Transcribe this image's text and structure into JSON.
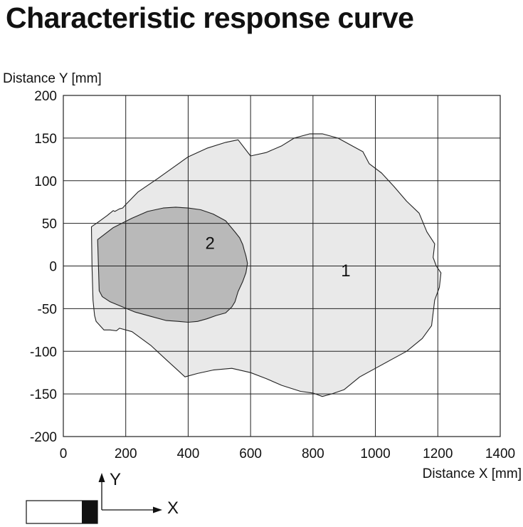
{
  "chart_data": {
    "type": "area",
    "title": "Characteristic response curve",
    "xlabel": "Distance X [mm]",
    "ylabel": "Distance Y [mm]",
    "xlim": [
      0,
      1400
    ],
    "ylim": [
      -200,
      200
    ],
    "xticks": [
      "0",
      "200",
      "400",
      "600",
      "800",
      "1000",
      "1200",
      "1400"
    ],
    "yticks": [
      "200",
      "150",
      "100",
      "50",
      "0",
      "-50",
      "-100",
      "-150",
      "-200"
    ],
    "grid": true,
    "colors": {
      "region_1": "#e9e9e9",
      "region_2": "#b9b9b9",
      "band": "#d4d4d4",
      "outline": "#222222",
      "grid": "#222222"
    },
    "series": [
      {
        "name": "1",
        "points": [
          [
            90,
            46
          ],
          [
            110,
            51
          ],
          [
            140,
            59
          ],
          [
            160,
            65
          ],
          [
            165,
            64
          ],
          [
            180,
            67
          ],
          [
            190,
            68
          ],
          [
            200,
            72
          ],
          [
            240,
            87
          ],
          [
            300,
            102
          ],
          [
            350,
            115
          ],
          [
            400,
            128
          ],
          [
            460,
            138
          ],
          [
            520,
            145
          ],
          [
            560,
            148
          ],
          [
            600,
            129
          ],
          [
            650,
            133
          ],
          [
            700,
            141
          ],
          [
            740,
            150
          ],
          [
            790,
            155
          ],
          [
            830,
            155
          ],
          [
            880,
            150
          ],
          [
            920,
            142
          ],
          [
            960,
            134
          ],
          [
            980,
            120
          ],
          [
            1020,
            109
          ],
          [
            1060,
            93
          ],
          [
            1100,
            76
          ],
          [
            1140,
            62
          ],
          [
            1165,
            40
          ],
          [
            1190,
            26
          ],
          [
            1185,
            10
          ],
          [
            1195,
            0
          ],
          [
            1210,
            -8
          ],
          [
            1205,
            -25
          ],
          [
            1190,
            -40
          ],
          [
            1185,
            -55
          ],
          [
            1180,
            -70
          ],
          [
            1150,
            -85
          ],
          [
            1100,
            -100
          ],
          [
            1050,
            -110
          ],
          [
            1000,
            -120
          ],
          [
            950,
            -130
          ],
          [
            900,
            -145
          ],
          [
            860,
            -150
          ],
          [
            830,
            -153
          ],
          [
            800,
            -149
          ],
          [
            760,
            -147
          ],
          [
            700,
            -140
          ],
          [
            650,
            -132
          ],
          [
            600,
            -125
          ],
          [
            540,
            -120
          ],
          [
            480,
            -122
          ],
          [
            430,
            -126
          ],
          [
            390,
            -130
          ],
          [
            360,
            -120
          ],
          [
            330,
            -110
          ],
          [
            280,
            -93
          ],
          [
            220,
            -77
          ],
          [
            180,
            -73
          ],
          [
            170,
            -76
          ],
          [
            150,
            -75
          ],
          [
            130,
            -75
          ],
          [
            105,
            -65
          ],
          [
            100,
            -58
          ],
          [
            95,
            -40
          ],
          [
            92,
            0
          ],
          [
            90,
            46
          ]
        ]
      },
      {
        "name": "2",
        "points": [
          [
            110,
            31
          ],
          [
            160,
            45
          ],
          [
            220,
            56
          ],
          [
            270,
            64
          ],
          [
            320,
            68
          ],
          [
            360,
            69
          ],
          [
            400,
            68
          ],
          [
            440,
            66
          ],
          [
            480,
            61
          ],
          [
            520,
            53
          ],
          [
            550,
            40
          ],
          [
            565,
            33
          ],
          [
            575,
            25
          ],
          [
            580,
            18
          ],
          [
            585,
            12
          ],
          [
            590,
            3
          ],
          [
            585,
            -8
          ],
          [
            575,
            -18
          ],
          [
            560,
            -30
          ],
          [
            550,
            -42
          ],
          [
            540,
            -48
          ],
          [
            520,
            -55
          ],
          [
            490,
            -58
          ],
          [
            460,
            -62
          ],
          [
            430,
            -65
          ],
          [
            400,
            -66
          ],
          [
            370,
            -65
          ],
          [
            330,
            -64
          ],
          [
            280,
            -59
          ],
          [
            230,
            -54
          ],
          [
            190,
            -48
          ],
          [
            150,
            -42
          ],
          [
            125,
            -36
          ],
          [
            115,
            -29
          ],
          [
            110,
            31
          ]
        ]
      }
    ],
    "region_labels": [
      "1",
      "2"
    ],
    "sensor_axes": {
      "y_label": "Y",
      "x_label": "X"
    }
  }
}
